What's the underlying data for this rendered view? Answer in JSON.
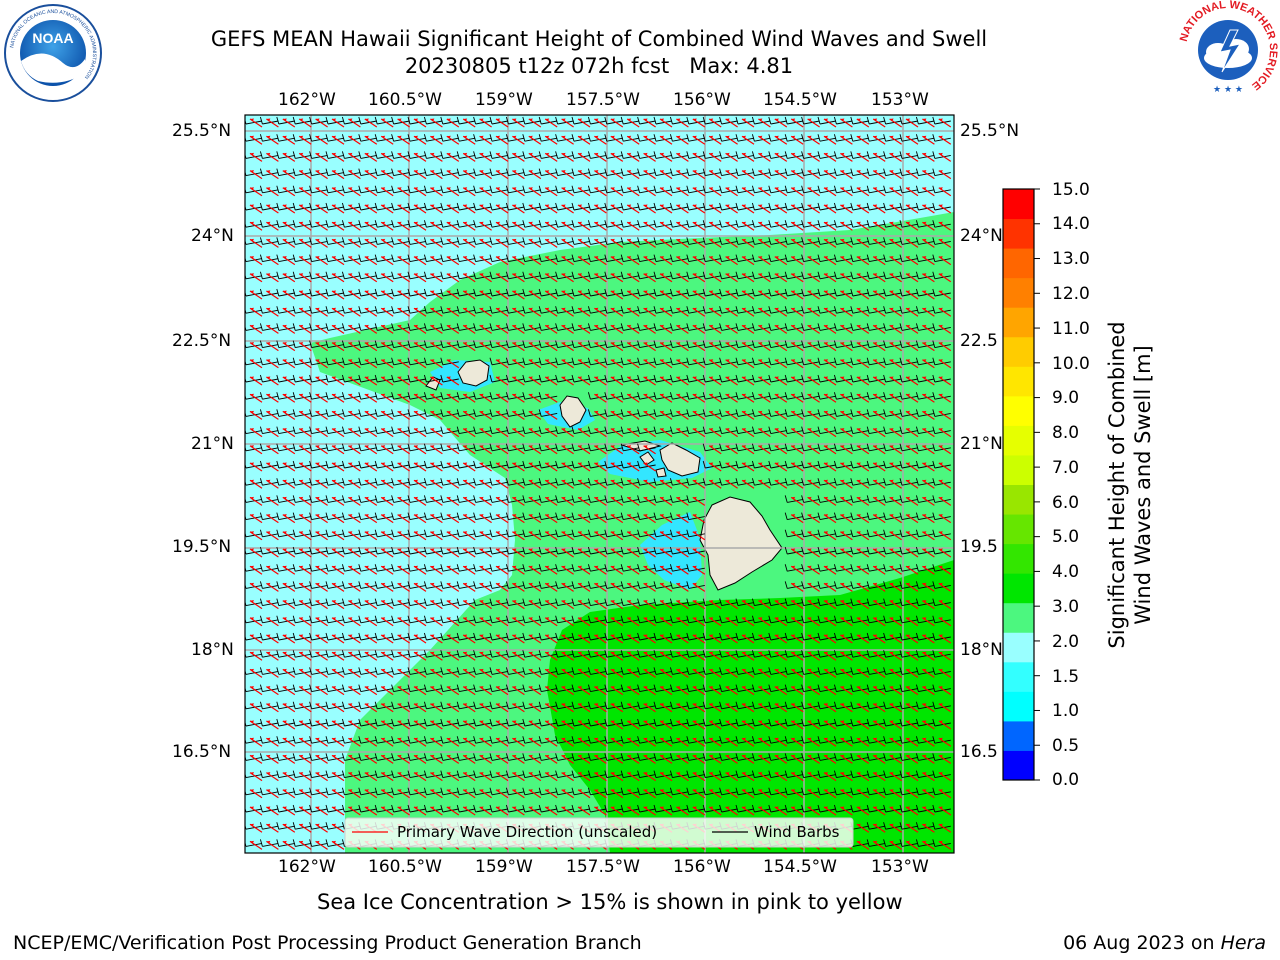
{
  "header": {
    "title_line1": "GEFS MEAN Hawaii Significant Height of Combined Wind Waves and Swell",
    "title_line2": "20230805 t12z 072h fcst   Max: 4.81"
  },
  "logos": {
    "left": {
      "name": "NOAA",
      "ring_text": "NATIONAL OCEANIC AND ATMOSPHERIC ADMINISTRATION",
      "bottom_text": "U.S. DEPARTMENT OF COMMERCE",
      "center_text": "NOAA"
    },
    "right": {
      "name": "National Weather Service",
      "ring_text": "NATIONAL WEATHER SERVICE"
    }
  },
  "map": {
    "lon_labels": [
      "162°W",
      "160.5°W",
      "159°W",
      "157.5°W",
      "156°W",
      "154.5°W",
      "153°W"
    ],
    "lat_labels_left": [
      "25.5°N",
      "24°N",
      "22.5°N",
      "21°N",
      "19.5°N",
      "18°N",
      "16.5°N"
    ],
    "lat_labels_right": [
      "25.5°N",
      "24°N",
      "22.5",
      "21°N",
      "19.5",
      "18°N",
      "16.5"
    ],
    "legend": {
      "primary_wave": "Primary Wave Direction (unscaled)",
      "wind_barbs": "Wind Barbs"
    },
    "colors": {
      "ocean_low": "#99ffff",
      "ocean_mid": "#4cf77f",
      "ocean_high": "#00e600",
      "near_shore": "#33e6ff",
      "land": "#ede9d9",
      "wave_arrow": "#ff0000",
      "barb": "#000000"
    }
  },
  "colorbar": {
    "label": "Significant Height of Combined\nWind Waves and Swell [m]",
    "ticks": [
      "15.0",
      "14.0",
      "13.0",
      "12.0",
      "11.0",
      "10.0",
      "9.0",
      "8.0",
      "7.0",
      "6.0",
      "5.0",
      "4.0",
      "3.0",
      "2.0",
      "1.5",
      "1.0",
      "0.5",
      "0.0"
    ],
    "colors": [
      "#0000ff",
      "#0066ff",
      "#00ffff",
      "#33ffff",
      "#99ffff",
      "#4cf77f",
      "#00e600",
      "#33e600",
      "#66e600",
      "#99e600",
      "#ccff00",
      "#e6ff00",
      "#ffff00",
      "#ffe600",
      "#ffcc00",
      "#ffa500",
      "#ff8000",
      "#ff6600",
      "#ff3300",
      "#ff0000"
    ]
  },
  "footer": {
    "sea_ice_note": "Sea Ice Concentration > 15% is shown in pink to yellow",
    "branch": "NCEP/EMC/Verification Post Processing Product Generation Branch",
    "date_prefix": "06 Aug 2023 on ",
    "host": "Hera"
  }
}
